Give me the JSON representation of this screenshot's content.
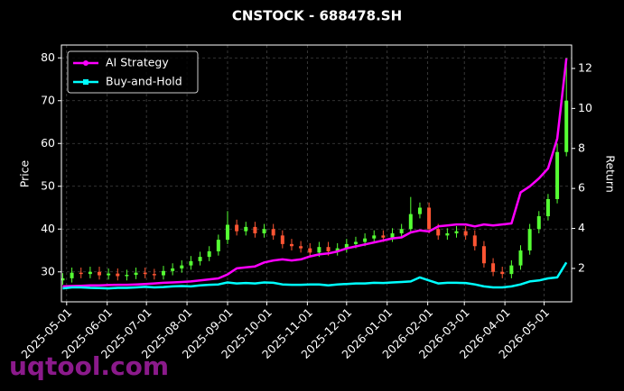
{
  "chart_data": {
    "type": "candlestick",
    "title": "CNSTOCK - 688478.SH",
    "ylabel": "Price",
    "y2label": "Return",
    "watermark": "uqtool.com",
    "x": [
      "2025-04-28",
      "2025-05-05",
      "2025-05-12",
      "2025-05-19",
      "2025-05-26",
      "2025-06-02",
      "2025-06-09",
      "2025-06-16",
      "2025-06-23",
      "2025-06-30",
      "2025-07-07",
      "2025-07-14",
      "2025-07-21",
      "2025-07-28",
      "2025-08-04",
      "2025-08-11",
      "2025-08-18",
      "2025-08-25",
      "2025-09-01",
      "2025-09-08",
      "2025-09-15",
      "2025-09-22",
      "2025-09-29",
      "2025-10-06",
      "2025-10-13",
      "2025-10-20",
      "2025-10-27",
      "2025-11-03",
      "2025-11-10",
      "2025-11-17",
      "2025-11-24",
      "2025-12-01",
      "2025-12-08",
      "2025-12-15",
      "2025-12-22",
      "2025-12-29",
      "2026-01-05",
      "2026-01-12",
      "2026-01-19",
      "2026-01-26",
      "2026-02-02",
      "2026-02-09",
      "2026-02-16",
      "2026-02-23",
      "2026-03-02",
      "2026-03-09",
      "2026-03-16",
      "2026-03-23",
      "2026-03-30",
      "2026-04-06",
      "2026-04-13",
      "2026-04-20",
      "2026-04-27",
      "2026-05-04",
      "2026-05-11",
      "2026-05-18"
    ],
    "candles": {
      "up_color": "#55ff33",
      "down_color": "#ff5533",
      "open": [
        28.0,
        28.5,
        29.8,
        29.5,
        30.0,
        29.2,
        29.6,
        29.0,
        29.3,
        29.8,
        29.5,
        29.2,
        30.2,
        30.8,
        31.5,
        32.5,
        33.5,
        34.8,
        37.5,
        41.0,
        39.5,
        40.5,
        39.0,
        40.0,
        38.5,
        36.5,
        36.0,
        35.5,
        34.5,
        35.8,
        34.8,
        35.5,
        36.5,
        37.0,
        37.8,
        38.5,
        38.0,
        39.0,
        40.0,
        43.5,
        45.0,
        40.0,
        38.5,
        39.0,
        39.5,
        38.5,
        36.0,
        32.0,
        30.0,
        29.5,
        31.5,
        35.0,
        40.0,
        43.0,
        47.0,
        58.0
      ],
      "high": [
        29.7,
        31.0,
        31.0,
        31.2,
        31.2,
        30.8,
        30.8,
        30.5,
        31.0,
        31.0,
        30.7,
        31.4,
        32.0,
        32.7,
        33.7,
        34.7,
        36.0,
        38.7,
        44.2,
        42.2,
        41.7,
        41.7,
        41.2,
        41.2,
        39.7,
        37.7,
        37.2,
        36.7,
        37.0,
        37.0,
        36.7,
        37.7,
        38.2,
        39.0,
        39.7,
        39.7,
        40.2,
        41.2,
        47.5,
        46.2,
        46.2,
        41.2,
        40.2,
        40.7,
        40.7,
        39.7,
        37.2,
        33.2,
        31.2,
        32.7,
        36.2,
        41.2,
        44.2,
        48.2,
        60.0,
        80.0
      ],
      "low": [
        27.0,
        27.5,
        28.5,
        28.5,
        28.2,
        28.2,
        28.0,
        28.0,
        28.3,
        28.5,
        28.2,
        28.2,
        29.2,
        29.8,
        30.5,
        31.5,
        32.5,
        33.8,
        36.5,
        38.5,
        38.5,
        38.0,
        38.0,
        37.5,
        35.5,
        35.0,
        34.5,
        33.5,
        33.5,
        33.8,
        33.8,
        34.5,
        35.5,
        36.0,
        36.8,
        37.0,
        37.0,
        38.0,
        39.0,
        42.5,
        39.0,
        37.5,
        37.5,
        38.0,
        37.5,
        35.0,
        31.0,
        29.0,
        28.5,
        28.5,
        30.5,
        34.0,
        39.0,
        42.0,
        46.0,
        57.0
      ],
      "close": [
        28.5,
        29.8,
        29.5,
        30.0,
        29.2,
        29.6,
        29.0,
        29.3,
        29.8,
        29.5,
        29.2,
        30.2,
        30.8,
        31.5,
        32.5,
        33.5,
        34.8,
        37.5,
        41.0,
        39.5,
        40.5,
        39.0,
        40.0,
        38.5,
        36.5,
        36.0,
        35.5,
        34.5,
        35.8,
        34.8,
        35.5,
        36.5,
        37.0,
        37.8,
        38.5,
        38.0,
        39.0,
        40.0,
        43.5,
        45.0,
        40.0,
        38.5,
        39.0,
        39.5,
        38.5,
        36.0,
        32.0,
        30.0,
        29.5,
        31.5,
        35.0,
        40.0,
        43.0,
        47.0,
        58.0,
        70.0
      ]
    },
    "series": [
      {
        "name": "AI Strategy",
        "color": "#ff00ff",
        "axis": "y2",
        "marker": "circle",
        "values": [
          1.1,
          1.12,
          1.13,
          1.15,
          1.15,
          1.17,
          1.18,
          1.18,
          1.2,
          1.22,
          1.25,
          1.28,
          1.3,
          1.32,
          1.35,
          1.4,
          1.45,
          1.5,
          1.7,
          2.0,
          2.05,
          2.1,
          2.3,
          2.4,
          2.45,
          2.4,
          2.45,
          2.6,
          2.7,
          2.75,
          2.85,
          3.0,
          3.1,
          3.2,
          3.3,
          3.4,
          3.5,
          3.55,
          3.8,
          3.9,
          3.85,
          4.1,
          4.15,
          4.2,
          4.2,
          4.1,
          4.2,
          4.15,
          4.2,
          4.25,
          5.8,
          6.1,
          6.5,
          7.0,
          8.5,
          12.5
        ]
      },
      {
        "name": "Buy-and-Hold",
        "color": "#00ffff",
        "axis": "y2",
        "marker": "square",
        "values": [
          1.0,
          1.05,
          1.05,
          1.03,
          1.02,
          1.0,
          1.03,
          1.03,
          1.05,
          1.08,
          1.05,
          1.07,
          1.1,
          1.12,
          1.1,
          1.15,
          1.18,
          1.2,
          1.3,
          1.25,
          1.27,
          1.25,
          1.3,
          1.28,
          1.2,
          1.18,
          1.18,
          1.2,
          1.2,
          1.15,
          1.2,
          1.22,
          1.25,
          1.25,
          1.28,
          1.27,
          1.3,
          1.32,
          1.35,
          1.55,
          1.4,
          1.25,
          1.28,
          1.28,
          1.27,
          1.2,
          1.1,
          1.05,
          1.05,
          1.1,
          1.2,
          1.35,
          1.4,
          1.5,
          1.55,
          2.3
        ]
      }
    ],
    "xlim": [
      "2025-04-27",
      "2026-05-22"
    ],
    "xticks": [
      "2025-05-01",
      "2025-06-01",
      "2025-07-01",
      "2025-08-01",
      "2025-09-01",
      "2025-10-01",
      "2025-11-01",
      "2025-12-01",
      "2026-01-01",
      "2026-02-01",
      "2026-03-01",
      "2026-04-01",
      "2026-05-01"
    ],
    "ylim": [
      23,
      83
    ],
    "yticks": [
      30,
      40,
      50,
      60,
      70,
      80
    ],
    "y2lim": [
      0.33,
      13.17
    ],
    "y2ticks": [
      2,
      4,
      6,
      8,
      10,
      12
    ],
    "grid": true,
    "legend": "upper left"
  }
}
